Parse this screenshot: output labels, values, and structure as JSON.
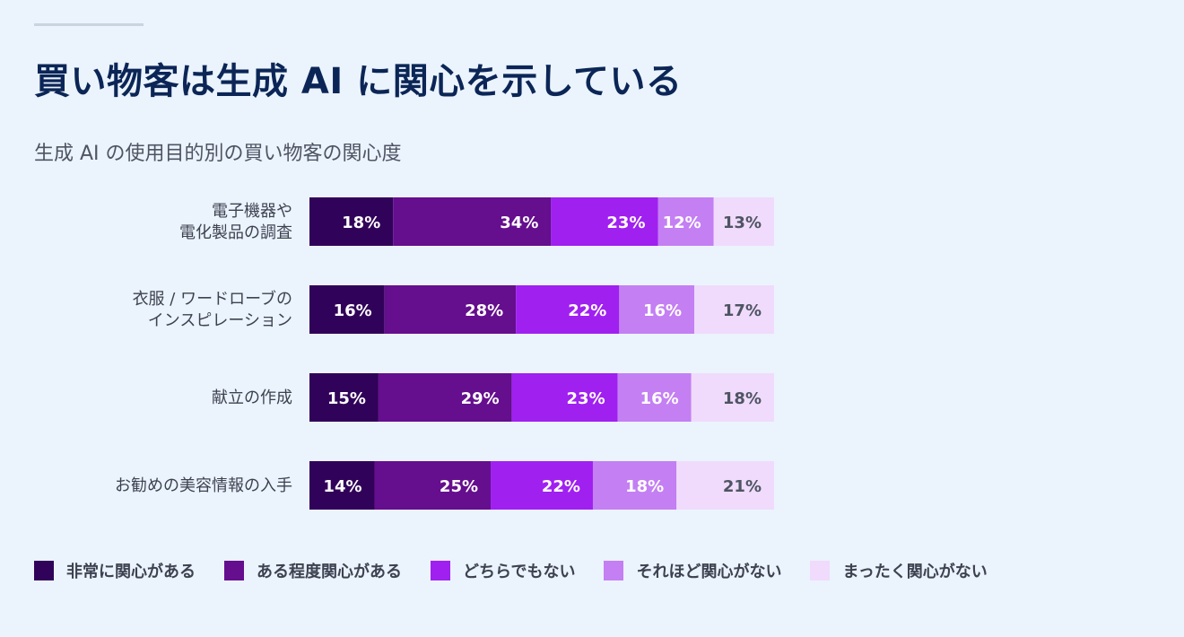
{
  "title": "買い物客は生成 AI に関心を示している",
  "subtitle": "生成 AI の使用目的別の買い物客の関心度",
  "chart_data": {
    "type": "bar",
    "orientation": "horizontal",
    "stacked": true,
    "unit": "%",
    "categories": [
      [
        "電子機器や",
        "電化製品の調査"
      ],
      [
        "衣服 / ワードローブの",
        "インスピレーション"
      ],
      [
        "献立の作成"
      ],
      [
        "お勧めの美容情報の入手"
      ]
    ],
    "series": [
      {
        "name": "非常に関心がある",
        "color": "#310259",
        "text_color": "#ffffff",
        "values": [
          18,
          16,
          15,
          14
        ]
      },
      {
        "name": "ある程度関心がある",
        "color": "#650e8e",
        "text_color": "#ffffff",
        "values": [
          34,
          28,
          29,
          25
        ]
      },
      {
        "name": "どちらでもない",
        "color": "#a020f0",
        "text_color": "#ffffff",
        "values": [
          23,
          22,
          23,
          22
        ]
      },
      {
        "name": "それほど関心がない",
        "color": "#c47ff3",
        "text_color": "#ffffff",
        "values": [
          12,
          16,
          16,
          18
        ]
      },
      {
        "name": "まったく関心がない",
        "color": "#f0dbfc",
        "text_color": "#4e5463",
        "values": [
          13,
          17,
          18,
          21
        ]
      }
    ],
    "legend_position": "bottom",
    "grid": false
  }
}
